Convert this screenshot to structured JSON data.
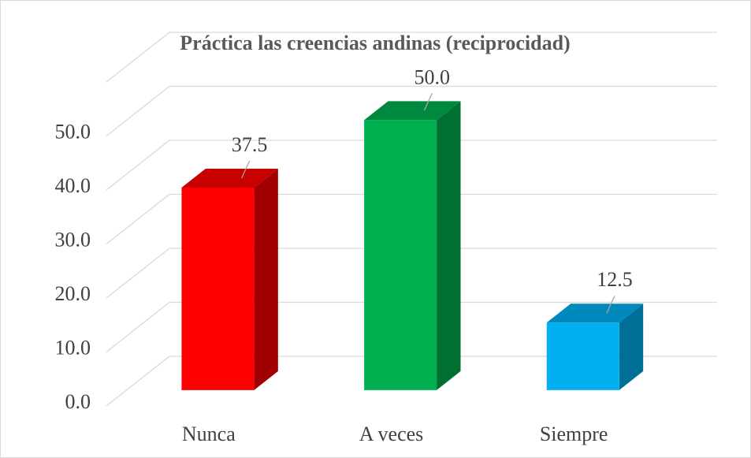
{
  "chart_data": {
    "type": "bar3d",
    "title": "Práctica las creencias andinas (reciprocidad)",
    "categories": [
      "Nunca",
      "A veces",
      "Siempre"
    ],
    "values": [
      37.5,
      50,
      12.5
    ],
    "value_labels": [
      "37.5",
      "50.0",
      "12.5"
    ],
    "colors": [
      "#ff0000",
      "#00b050",
      "#00b0f0"
    ],
    "ylim": [
      0,
      60
    ],
    "yticks": [
      {
        "value": 0,
        "label": "0.0"
      },
      {
        "value": 10,
        "label": "10.0"
      },
      {
        "value": 20,
        "label": "20.0"
      },
      {
        "value": 30,
        "label": "30.0"
      },
      {
        "value": 40,
        "label": "40.0"
      },
      {
        "value": 50,
        "label": "50.0"
      }
    ],
    "grid": true
  }
}
